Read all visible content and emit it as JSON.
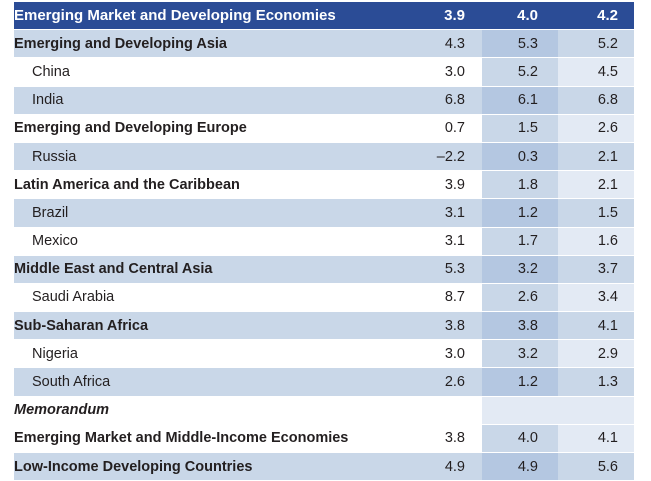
{
  "table": {
    "rows": [
      {
        "label": "Emerging Market and Developing Economies",
        "v1": "3.9",
        "v2": "4.0",
        "v3": "4.2",
        "style": "head",
        "indent": false
      },
      {
        "label": "Emerging and Developing Asia",
        "v1": "4.3",
        "v2": "5.3",
        "v3": "5.2",
        "style": "shade",
        "bold": true,
        "indent": false
      },
      {
        "label": "China",
        "v1": "3.0",
        "v2": "5.2",
        "v3": "4.5",
        "style": "plain",
        "indent": true
      },
      {
        "label": "India",
        "v1": "6.8",
        "v2": "6.1",
        "v3": "6.8",
        "style": "shade",
        "indent": true
      },
      {
        "label": "Emerging and Developing Europe",
        "v1": "0.7",
        "v2": "1.5",
        "v3": "2.6",
        "style": "plain",
        "bold": true,
        "indent": false
      },
      {
        "label": "Russia",
        "v1": "–2.2",
        "v2": "0.3",
        "v3": "2.1",
        "style": "shade",
        "indent": true
      },
      {
        "label": "Latin America and the Caribbean",
        "v1": "3.9",
        "v2": "1.8",
        "v3": "2.1",
        "style": "plain",
        "bold": true,
        "indent": false
      },
      {
        "label": "Brazil",
        "v1": "3.1",
        "v2": "1.2",
        "v3": "1.5",
        "style": "shade",
        "indent": true
      },
      {
        "label": "Mexico",
        "v1": "3.1",
        "v2": "1.7",
        "v3": "1.6",
        "style": "plain",
        "indent": true
      },
      {
        "label": "Middle East and Central Asia",
        "v1": "5.3",
        "v2": "3.2",
        "v3": "3.7",
        "style": "shade",
        "bold": true,
        "indent": false
      },
      {
        "label": "Saudi Arabia",
        "v1": "8.7",
        "v2": "2.6",
        "v3": "3.4",
        "style": "plain",
        "indent": true
      },
      {
        "label": "Sub-Saharan Africa",
        "v1": "3.8",
        "v2": "3.8",
        "v3": "4.1",
        "style": "shade",
        "bold": true,
        "indent": false
      },
      {
        "label": "Nigeria",
        "v1": "3.0",
        "v2": "3.2",
        "v3": "2.9",
        "style": "plain",
        "indent": true
      },
      {
        "label": "South Africa",
        "v1": "2.6",
        "v2": "1.2",
        "v3": "1.3",
        "style": "shade",
        "indent": true
      },
      {
        "label": "Memorandum",
        "v1": "",
        "v2": "",
        "v3": "",
        "style": "memo",
        "italic": true,
        "indent": false
      },
      {
        "label": "Emerging Market and Middle-Income Economies",
        "v1": "3.8",
        "v2": "4.0",
        "v3": "4.1",
        "style": "plain",
        "bold": true,
        "indent": false
      },
      {
        "label": "Low-Income Developing Countries",
        "v1": "4.9",
        "v2": "4.9",
        "v3": "5.6",
        "style": "shade",
        "bold": true,
        "indent": false
      }
    ]
  },
  "colors": {
    "header_blue": "#2b4c96",
    "row_shade": "#c9d7e8",
    "col_shade_dark": "#b4c7e1",
    "col_shade_light": "#e3eaf4"
  }
}
